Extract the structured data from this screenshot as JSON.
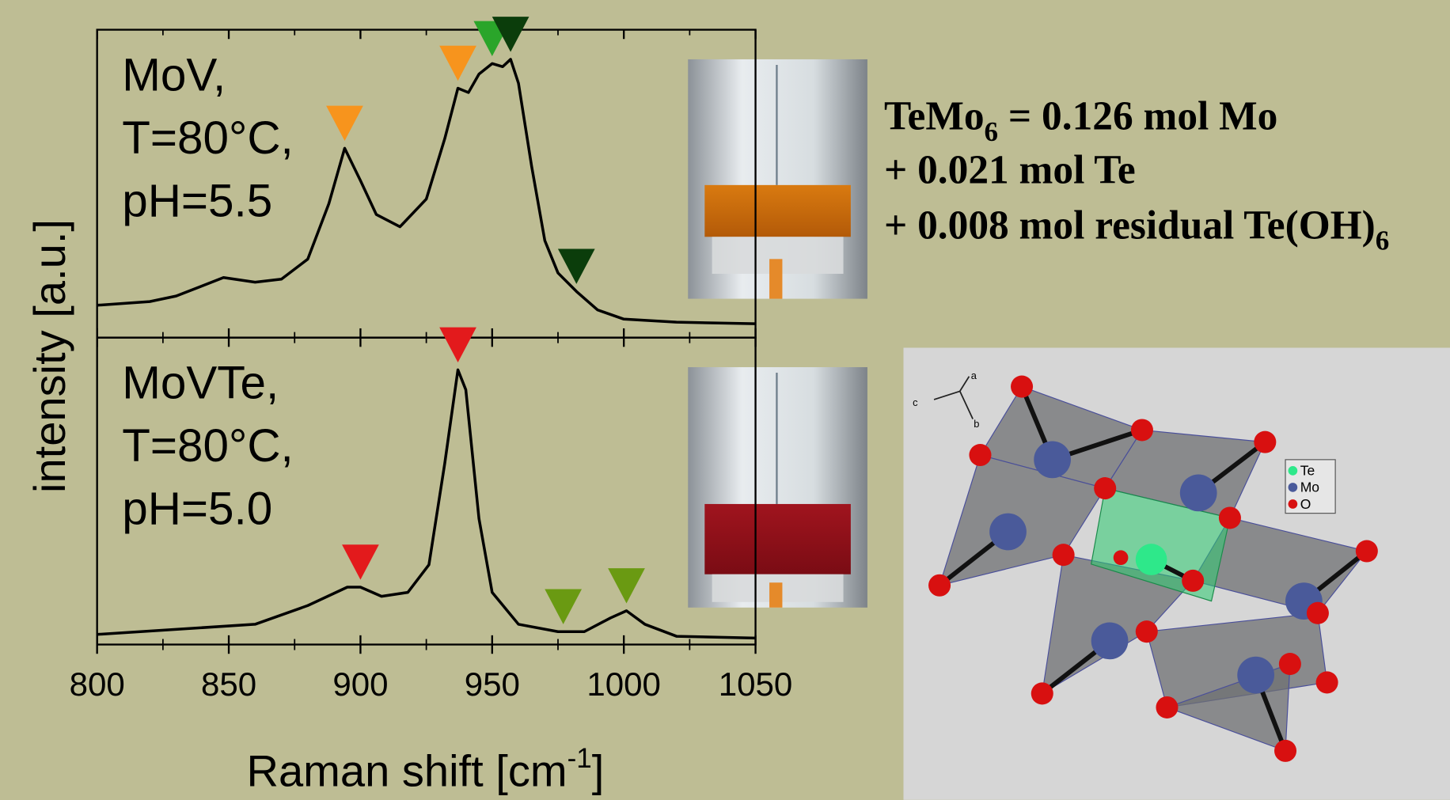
{
  "chart_data": [
    {
      "type": "line",
      "label": [
        "MoV,",
        "T=80°C,",
        "pH=5.5"
      ],
      "xlim": [
        800,
        1050
      ],
      "ylim": [
        0,
        100
      ],
      "x": [
        800,
        820,
        830,
        848,
        860,
        870,
        880,
        888,
        894,
        900,
        906,
        915,
        925,
        932,
        937,
        941,
        945,
        950,
        954,
        957,
        960,
        965,
        970,
        975,
        982,
        990,
        1000,
        1020,
        1050
      ],
      "series": [
        {
          "color": "#000000",
          "values": [
            10.5,
            11.7,
            13.5,
            19.5,
            18,
            19,
            25.5,
            43.5,
            61.5,
            51,
            40,
            36,
            45,
            64.6,
            81,
            79.6,
            85.6,
            89,
            88,
            90.4,
            82.6,
            55.6,
            31.5,
            21,
            15,
            9,
            6,
            5,
            4.5
          ]
        }
      ],
      "markers": [
        {
          "x": 894,
          "color": "#f7941d"
        },
        {
          "x": 937,
          "color": "#f7941d"
        },
        {
          "x": 950,
          "color": "#2aa52a"
        },
        {
          "x": 957,
          "color": "#0b3d0b"
        },
        {
          "x": 982,
          "color": "#0b3d0b"
        }
      ]
    },
    {
      "type": "line",
      "label": [
        "MoVTe,",
        "T=80°C,",
        "pH=5.0"
      ],
      "xlim": [
        800,
        1050
      ],
      "ylim": [
        0,
        100
      ],
      "xticks": [
        800,
        850,
        900,
        950,
        1000,
        1050
      ],
      "minor_xticks": [
        825,
        875,
        925,
        975,
        1025
      ],
      "x": [
        800,
        860,
        880,
        895,
        900,
        908,
        918,
        926,
        932,
        937,
        940,
        945,
        950,
        960,
        975,
        985,
        995,
        1001,
        1008,
        1020,
        1050
      ],
      "series": [
        {
          "color": "#000000",
          "values": [
            3.3,
            6.6,
            12.7,
            18.7,
            18.7,
            15.7,
            17,
            26,
            59,
            89.5,
            83,
            41,
            17,
            6.6,
            4.2,
            4.2,
            8.7,
            11,
            6.6,
            2.7,
            2.1
          ]
        }
      ],
      "markers": [
        {
          "x": 900,
          "color": "#e31a1c"
        },
        {
          "x": 937,
          "color": "#e31a1c"
        },
        {
          "x": 977,
          "color": "#6a9a12"
        },
        {
          "x": 1001,
          "color": "#6a9a12"
        }
      ]
    }
  ],
  "x_label": {
    "text": "Raman shift [cm",
    "sup": "-1",
    "end": "]"
  },
  "y_label": "intensity [a.u.]",
  "equation": [
    {
      "text": "TeMo",
      "sub": "6",
      "end": " = 0.126 mol Mo"
    },
    {
      "text": "+ 0.021 mol Te"
    },
    {
      "text": "+ 0.008 mol residual Te(OH)",
      "sub": "6"
    }
  ],
  "structure": {
    "axes": [
      "a",
      "b",
      "c"
    ],
    "legend": [
      "Te",
      "Mo",
      "O"
    ]
  }
}
